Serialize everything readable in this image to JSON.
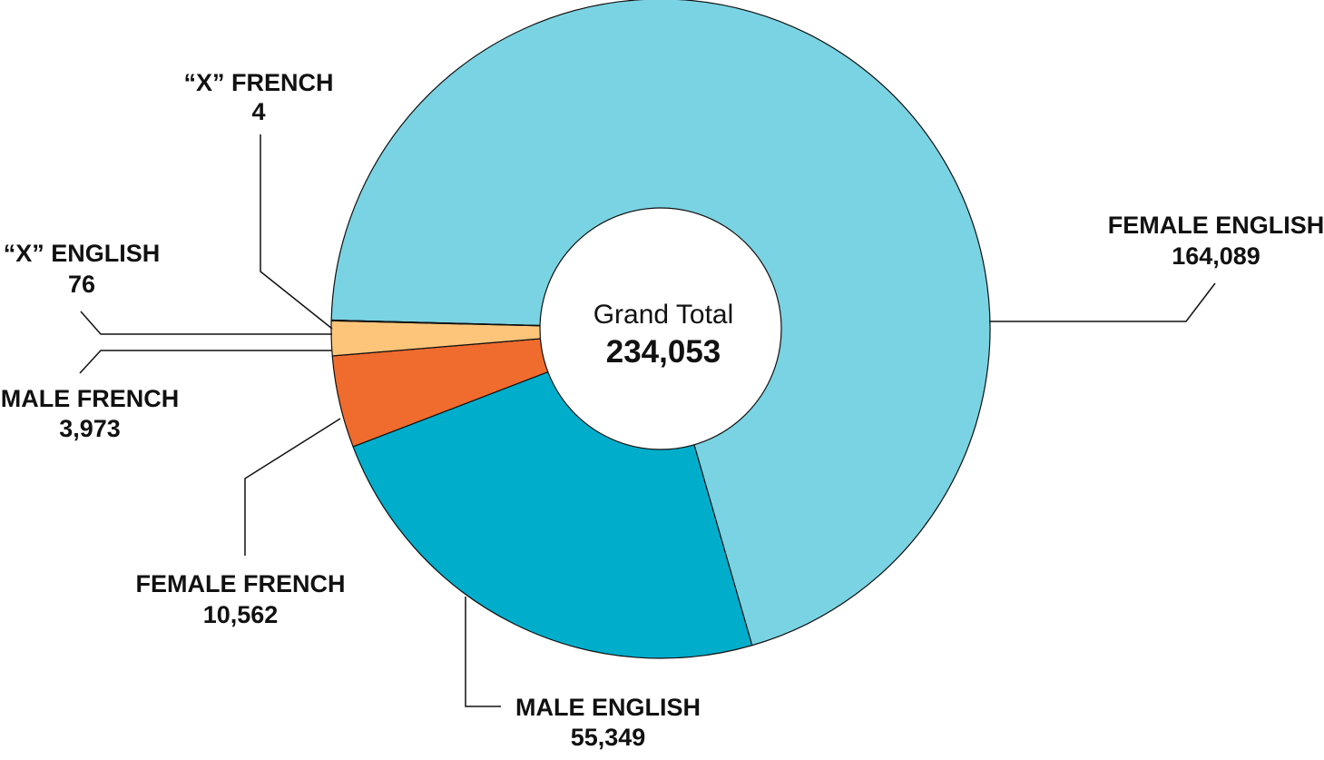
{
  "chart_data": {
    "type": "pie",
    "variant": "donut",
    "center": {
      "title": "Grand Total",
      "value": "234,053"
    },
    "slices": [
      {
        "label": "FEMALE ENGLISH",
        "value": 164089,
        "value_label": "164,089",
        "color": "#7AD3E3"
      },
      {
        "label": "MALE ENGLISH",
        "value": 55349,
        "value_label": "55,349",
        "color": "#00AECC"
      },
      {
        "label": "FEMALE FRENCH",
        "value": 10562,
        "value_label": "10,562",
        "color": "#EF6B2E"
      },
      {
        "label": "MALE FRENCH",
        "value": 3973,
        "value_label": "3,973",
        "color": "#FDC57A"
      },
      {
        "label": "“X” ENGLISH",
        "value": 76,
        "value_label": "76",
        "color": "#1E9E8F"
      },
      {
        "label": "“X” FRENCH",
        "value": 4,
        "value_label": "4",
        "color": "#2A7F86"
      }
    ],
    "legend": "none"
  }
}
